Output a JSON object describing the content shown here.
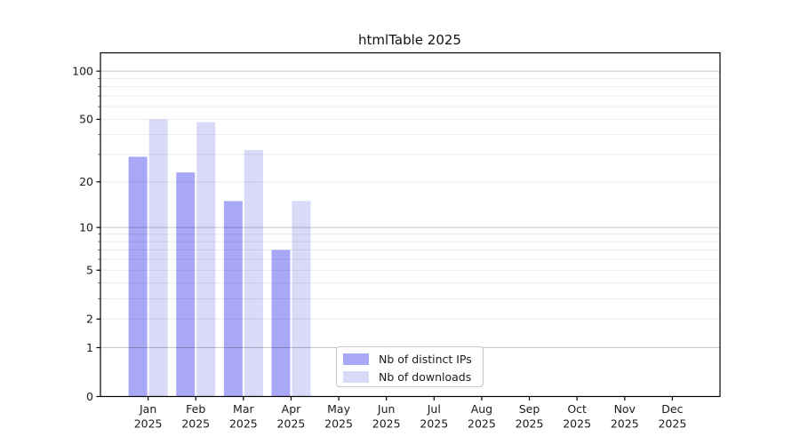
{
  "chart_data": {
    "type": "bar",
    "title": "htmlTable 2025",
    "categories": [
      "Jan",
      "Feb",
      "Mar",
      "Apr",
      "May",
      "Jun",
      "Jul",
      "Aug",
      "Sep",
      "Oct",
      "Nov",
      "Dec"
    ],
    "x_tick_line2": "2025",
    "series": [
      {
        "name": "Nb of distinct IPs",
        "color": "#a8a8f6",
        "values": [
          29,
          23,
          15,
          7,
          0,
          0,
          0,
          0,
          0,
          0,
          0,
          0
        ]
      },
      {
        "name": "Nb of downloads",
        "color": "#d9d9f8",
        "values": [
          50,
          48,
          32,
          15,
          0,
          0,
          0,
          0,
          0,
          0,
          0,
          0
        ]
      }
    ],
    "y_scale": "log10(1+y)",
    "ylim": [
      0,
      130
    ],
    "y_ticks": [
      0,
      1,
      2,
      5,
      10,
      20,
      50,
      100
    ],
    "y_major_gridlines": [
      1,
      10,
      100
    ],
    "y_minor_gridlines": [
      2,
      3,
      4,
      5,
      6,
      7,
      8,
      9,
      20,
      30,
      40,
      50,
      60,
      70,
      80,
      90
    ],
    "grid": true,
    "legend_position": "lower center",
    "xlabel": "",
    "ylabel": ""
  }
}
